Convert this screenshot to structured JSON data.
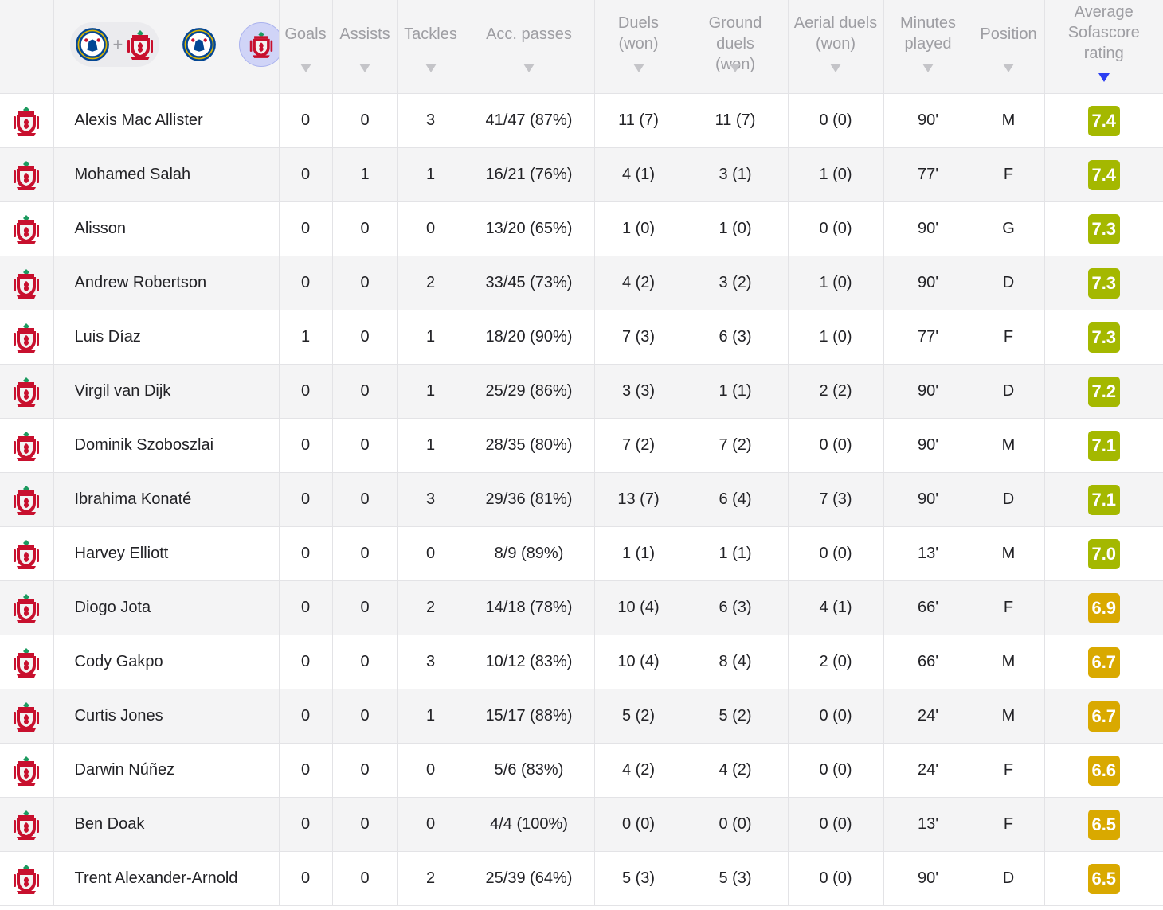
{
  "columns": [
    {
      "key": "goals",
      "label": "Goals"
    },
    {
      "key": "assists",
      "label": "Assists"
    },
    {
      "key": "tackles",
      "label": "Tackles"
    },
    {
      "key": "acc_passes",
      "label": "Acc. passes"
    },
    {
      "key": "duels",
      "label": "Duels (won)"
    },
    {
      "key": "ground_duels",
      "label": "Ground duels (won)"
    },
    {
      "key": "aerial_duels",
      "label": "Aerial duels (won)"
    },
    {
      "key": "minutes",
      "label": "Minutes played"
    },
    {
      "key": "position",
      "label": "Position"
    },
    {
      "key": "rating",
      "label": "Average Sofascore rating"
    }
  ],
  "team_filter": {
    "plus": "+",
    "options": [
      "chelsea-liverpool-combined",
      "chelsea",
      "liverpool"
    ],
    "selected": "liverpool"
  },
  "colors": {
    "chelsea_blue": "#034694",
    "liverpool_red": "#c8102e",
    "sort_arrow": "#2c3ff2",
    "rating_green": "#a4b800",
    "rating_yellow": "#d9a900"
  },
  "players": [
    {
      "name": "Alexis Mac Allister",
      "goals": "0",
      "assists": "0",
      "tackles": "3",
      "acc_passes": "41/47 (87%)",
      "duels": "11 (7)",
      "ground_duels": "11 (7)",
      "aerial_duels": "0 (0)",
      "minutes": "90'",
      "position": "M",
      "rating": "7.4"
    },
    {
      "name": "Mohamed Salah",
      "goals": "0",
      "assists": "1",
      "tackles": "1",
      "acc_passes": "16/21 (76%)",
      "duels": "4 (1)",
      "ground_duels": "3 (1)",
      "aerial_duels": "1 (0)",
      "minutes": "77'",
      "position": "F",
      "rating": "7.4"
    },
    {
      "name": "Alisson",
      "goals": "0",
      "assists": "0",
      "tackles": "0",
      "acc_passes": "13/20 (65%)",
      "duels": "1 (0)",
      "ground_duels": "1 (0)",
      "aerial_duels": "0 (0)",
      "minutes": "90'",
      "position": "G",
      "rating": "7.3"
    },
    {
      "name": "Andrew Robertson",
      "goals": "0",
      "assists": "0",
      "tackles": "2",
      "acc_passes": "33/45 (73%)",
      "duels": "4 (2)",
      "ground_duels": "3 (2)",
      "aerial_duels": "1 (0)",
      "minutes": "90'",
      "position": "D",
      "rating": "7.3"
    },
    {
      "name": "Luis Díaz",
      "goals": "1",
      "assists": "0",
      "tackles": "1",
      "acc_passes": "18/20 (90%)",
      "duels": "7 (3)",
      "ground_duels": "6 (3)",
      "aerial_duels": "1 (0)",
      "minutes": "77'",
      "position": "F",
      "rating": "7.3"
    },
    {
      "name": "Virgil van Dijk",
      "goals": "0",
      "assists": "0",
      "tackles": "1",
      "acc_passes": "25/29 (86%)",
      "duels": "3 (3)",
      "ground_duels": "1 (1)",
      "aerial_duels": "2 (2)",
      "minutes": "90'",
      "position": "D",
      "rating": "7.2"
    },
    {
      "name": "Dominik Szoboszlai",
      "goals": "0",
      "assists": "0",
      "tackles": "1",
      "acc_passes": "28/35 (80%)",
      "duels": "7 (2)",
      "ground_duels": "7 (2)",
      "aerial_duels": "0 (0)",
      "minutes": "90'",
      "position": "M",
      "rating": "7.1"
    },
    {
      "name": "Ibrahima Konaté",
      "goals": "0",
      "assists": "0",
      "tackles": "3",
      "acc_passes": "29/36 (81%)",
      "duels": "13 (7)",
      "ground_duels": "6 (4)",
      "aerial_duels": "7 (3)",
      "minutes": "90'",
      "position": "D",
      "rating": "7.1"
    },
    {
      "name": "Harvey Elliott",
      "goals": "0",
      "assists": "0",
      "tackles": "0",
      "acc_passes": "8/9 (89%)",
      "duels": "1 (1)",
      "ground_duels": "1 (1)",
      "aerial_duels": "0 (0)",
      "minutes": "13'",
      "position": "M",
      "rating": "7.0"
    },
    {
      "name": "Diogo Jota",
      "goals": "0",
      "assists": "0",
      "tackles": "2",
      "acc_passes": "14/18 (78%)",
      "duels": "10 (4)",
      "ground_duels": "6 (3)",
      "aerial_duels": "4 (1)",
      "minutes": "66'",
      "position": "F",
      "rating": "6.9"
    },
    {
      "name": "Cody Gakpo",
      "goals": "0",
      "assists": "0",
      "tackles": "3",
      "acc_passes": "10/12 (83%)",
      "duels": "10 (4)",
      "ground_duels": "8 (4)",
      "aerial_duels": "2 (0)",
      "minutes": "66'",
      "position": "M",
      "rating": "6.7"
    },
    {
      "name": "Curtis Jones",
      "goals": "0",
      "assists": "0",
      "tackles": "1",
      "acc_passes": "15/17 (88%)",
      "duels": "5 (2)",
      "ground_duels": "5 (2)",
      "aerial_duels": "0 (0)",
      "minutes": "24'",
      "position": "M",
      "rating": "6.7"
    },
    {
      "name": "Darwin Núñez",
      "goals": "0",
      "assists": "0",
      "tackles": "0",
      "acc_passes": "5/6 (83%)",
      "duels": "4 (2)",
      "ground_duels": "4 (2)",
      "aerial_duels": "0 (0)",
      "minutes": "24'",
      "position": "F",
      "rating": "6.6"
    },
    {
      "name": "Ben Doak",
      "goals": "0",
      "assists": "0",
      "tackles": "0",
      "acc_passes": "4/4 (100%)",
      "duels": "0 (0)",
      "ground_duels": "0 (0)",
      "aerial_duels": "0 (0)",
      "minutes": "13'",
      "position": "F",
      "rating": "6.5"
    },
    {
      "name": "Trent Alexander-Arnold",
      "goals": "0",
      "assists": "0",
      "tackles": "2",
      "acc_passes": "25/39 (64%)",
      "duels": "5 (3)",
      "ground_duels": "5 (3)",
      "aerial_duels": "0 (0)",
      "minutes": "90'",
      "position": "D",
      "rating": "6.5"
    }
  ]
}
